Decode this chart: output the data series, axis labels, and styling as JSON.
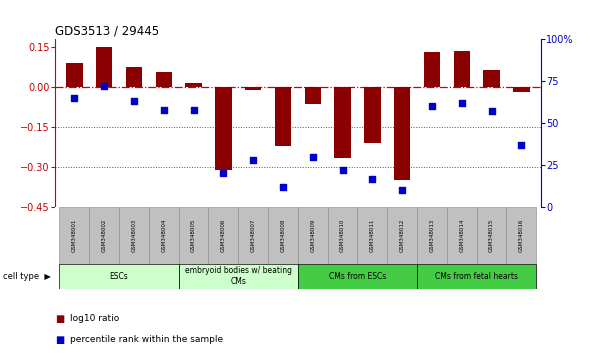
{
  "title": "GDS3513 / 29445",
  "samples": [
    "GSM348001",
    "GSM348002",
    "GSM348003",
    "GSM348004",
    "GSM348005",
    "GSM348006",
    "GSM348007",
    "GSM348008",
    "GSM348009",
    "GSM348010",
    "GSM348011",
    "GSM348012",
    "GSM348013",
    "GSM348014",
    "GSM348015",
    "GSM348016"
  ],
  "log10_ratio": [
    0.09,
    0.15,
    0.075,
    0.055,
    0.015,
    -0.31,
    -0.01,
    -0.22,
    -0.065,
    -0.265,
    -0.21,
    -0.35,
    0.13,
    0.135,
    0.065,
    -0.02
  ],
  "percentile_rank": [
    65,
    72,
    63,
    58,
    58,
    20,
    28,
    12,
    30,
    22,
    17,
    10,
    60,
    62,
    57,
    37
  ],
  "bar_color": "#8B0000",
  "dot_color": "#0000CD",
  "ref_line_color": "#CC0000",
  "dotted_line_color": "#555555",
  "bg_color": "#FFFFFF",
  "ylim_left": [
    -0.45,
    0.18
  ],
  "ylim_right": [
    0,
    100
  ],
  "yticks_left": [
    0.15,
    0.0,
    -0.15,
    -0.3,
    -0.45
  ],
  "yticks_right": [
    100,
    75,
    50,
    25,
    0
  ],
  "right_tick_labels": [
    "100%",
    "75",
    "50",
    "25",
    "0"
  ],
  "cell_type_groups": [
    {
      "label": "ESCs",
      "start": 0,
      "end": 3,
      "light": true
    },
    {
      "label": "embryoid bodies w/ beating\nCMs",
      "start": 4,
      "end": 7,
      "light": true
    },
    {
      "label": "CMs from ESCs",
      "start": 8,
      "end": 11,
      "light": false
    },
    {
      "label": "CMs from fetal hearts",
      "start": 12,
      "end": 15,
      "light": false
    }
  ],
  "cell_group_light_color": "#CCFFCC",
  "cell_group_dark_color": "#44CC44",
  "sample_box_color": "#C0C0C0",
  "sample_box_edge_color": "#888888",
  "legend_log10_color": "#8B0000",
  "legend_pct_color": "#0000CD",
  "bar_width": 0.55,
  "xlim": [
    -0.65,
    15.65
  ]
}
